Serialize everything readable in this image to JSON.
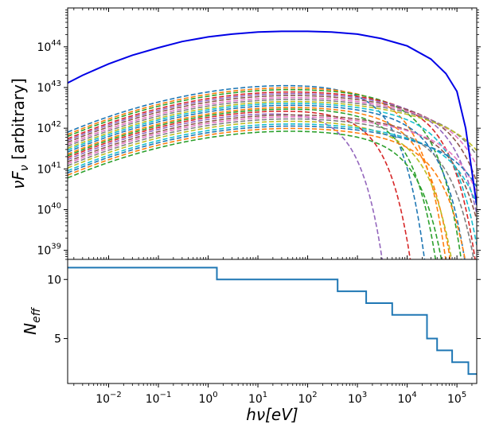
{
  "chart_data": [
    {
      "type": "line",
      "title": "",
      "xscale": "log",
      "yscale": "log",
      "xlim": [
        0.0015,
        250000
      ],
      "ylim": [
        6e+38,
        9e+44
      ],
      "ylabel_html": "νF<sub>ν</sub> [arbitrary]",
      "ylabel_parts": {
        "nu": "ν",
        "F": "F",
        "sub": "ν",
        "rest": " [arbitrary]"
      },
      "y_ticks": [
        {
          "value": 1e+39,
          "base": "10",
          "exp": "39"
        },
        {
          "value": 1e+40,
          "base": "10",
          "exp": "40"
        },
        {
          "value": 1e+41,
          "base": "10",
          "exp": "41"
        },
        {
          "value": 1e+42,
          "base": "10",
          "exp": "42"
        },
        {
          "value": 1e+43,
          "base": "10",
          "exp": "43"
        },
        {
          "value": 1e+44,
          "base": "10",
          "exp": "44"
        }
      ],
      "total_series": {
        "color": "#0000e6",
        "style": "solid",
        "x": [
          0.0015,
          0.003,
          0.01,
          0.03,
          0.1,
          0.3,
          1,
          3,
          10,
          30,
          100,
          300,
          1000,
          3000,
          10000,
          30000,
          60000,
          100000,
          150000,
          250000
        ],
        "y": [
          1.3e+43,
          2e+43,
          3.8e+43,
          6.2e+43,
          9.5e+43,
          1.35e+44,
          1.75e+44,
          2.05e+44,
          2.3e+44,
          2.4e+44,
          2.4e+44,
          2.3e+44,
          2.05e+44,
          1.6e+44,
          1.05e+44,
          5e+43,
          2.2e+43,
          8e+42,
          1e+42,
          1.3e+40
        ]
      },
      "component_series": {
        "style": "dashed",
        "x_start": 0.0015,
        "x_peak": 50,
        "amplitudes_at_start": [
          8e+41,
          7e+41,
          6.3e+41,
          5.5e+41,
          5e+41,
          4.5e+41,
          4e+41,
          3.6e+41,
          3.2e+41,
          2.9e+41,
          2.6e+41,
          2.3e+41,
          2.1e+41,
          1.9e+41,
          1.7e+41,
          1.5e+41,
          1.35e+41,
          1.2e+41,
          1.05e+41,
          9e+40,
          8e+40,
          7e+40,
          6e+40
        ],
        "cutoffs_eV": [
          2500,
          7000,
          15000,
          30000,
          50000,
          80000,
          120000,
          180000,
          250000,
          40000,
          20000,
          10000,
          5000,
          1500,
          400,
          60000,
          100000,
          35000,
          12000,
          90000,
          150000,
          25000,
          8000
        ],
        "colors": [
          "#1f77b4",
          "#ff7f0e",
          "#2ca02c",
          "#d62728",
          "#9467bd",
          "#8c564b",
          "#e377c2",
          "#7f7f7f",
          "#bcbd22",
          "#17becf"
        ]
      }
    },
    {
      "type": "line",
      "title": "",
      "xscale": "log",
      "xlim": [
        0.0015,
        250000
      ],
      "ylim": [
        1.2,
        11.7
      ],
      "xlabel_parts": {
        "h": "h",
        "nu": "ν",
        "rest": "[eV]"
      },
      "ylabel_parts": {
        "N": "N",
        "sub": "eff"
      },
      "y_ticks": [
        {
          "value": 5,
          "label": "5"
        },
        {
          "value": 10,
          "label": "10"
        }
      ],
      "x_ticks": [
        {
          "value": 0.01,
          "base": "10",
          "exp": "−2"
        },
        {
          "value": 0.1,
          "base": "10",
          "exp": "−1"
        },
        {
          "value": 1,
          "base": "10",
          "exp": "0"
        },
        {
          "value": 10,
          "base": "10",
          "exp": "1"
        },
        {
          "value": 100,
          "base": "10",
          "exp": "2"
        },
        {
          "value": 1000,
          "base": "10",
          "exp": "3"
        },
        {
          "value": 10000,
          "base": "10",
          "exp": "4"
        },
        {
          "value": 100000,
          "base": "10",
          "exp": "5"
        }
      ],
      "series": [
        {
          "color": "#1f77b4",
          "step": true,
          "x": [
            0.0015,
            1.5,
            400,
            1500,
            5000,
            25000,
            40000,
            80000,
            170000,
            250000
          ],
          "y": [
            11,
            10,
            9,
            8,
            7,
            5,
            4,
            3,
            2,
            2
          ]
        }
      ]
    }
  ]
}
